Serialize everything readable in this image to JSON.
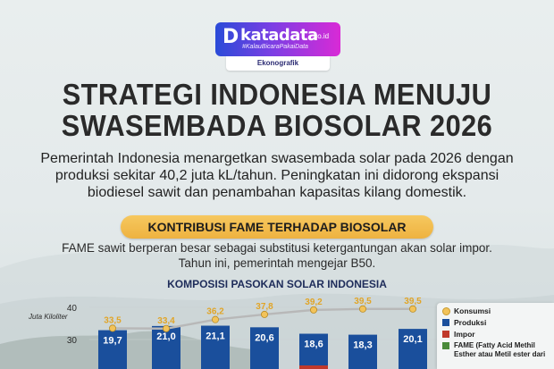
{
  "brand": {
    "name": "katadata",
    "domain": ".co.id",
    "tagline": "#KalauBicaraPakaiData",
    "section": "Ekonografik",
    "colors": {
      "gradient_start": "#2a4bd8",
      "gradient_end": "#d92ad6"
    }
  },
  "title": {
    "line1": "STRATEGI INDONESIA MENUJU",
    "line2": "SWASEMBADA BIOSOLAR 2026"
  },
  "lead": {
    "line1": "Pemerintah Indonesia menargetkan swasembada solar pada 2026 dengan",
    "line2": "produksi sekitar 40,2 juta kL/tahun. Peningkatan ini didorong ekspansi",
    "line3": "biodiesel sawit dan penambahan kapasitas kilang domestik."
  },
  "section_pill": "KONTRIBUSI FAME TERHADAP BIOSOLAR",
  "section_sub": {
    "line1": "FAME sawit berperan besar sebagai substitusi ketergantungan akan solar impor.",
    "line2": "Tahun ini, pemerintah mengejar B50."
  },
  "chart_title": "KOMPOSISI PASOKAN SOLAR INDONESIA",
  "chart_data": {
    "type": "bar",
    "y_unit_label": "Juta Kiloliter",
    "y_ticks": [
      "40",
      "30"
    ],
    "ylim_visible": [
      28,
      40
    ],
    "colors": {
      "konsumsi": "#f2c35a",
      "produksi": "#1a4f9c",
      "impor": "#c0392b",
      "line": "#b8b8b8"
    },
    "series": [
      {
        "name": "Konsumsi",
        "type": "line",
        "values": [
          33.5,
          33.4,
          36.2,
          37.8,
          39.2,
          39.5,
          39.5
        ],
        "labels": [
          "33,5",
          "33,4",
          "36,2",
          "37,8",
          "39,2",
          "39,5",
          "39,5"
        ]
      },
      {
        "name": "Produksi",
        "type": "bar",
        "values": [
          19.7,
          21.0,
          21.1,
          20.6,
          18.6,
          18.3,
          20.1
        ],
        "labels": [
          "19,7",
          "21,0",
          "21,1",
          "20,6",
          "18,6",
          "18,3",
          "20,1"
        ]
      },
      {
        "name": "Impor",
        "type": "bar"
      },
      {
        "name": "FAME (Fatty Acid Methil Esther atau Metil ester dari",
        "type": "bar"
      }
    ]
  }
}
